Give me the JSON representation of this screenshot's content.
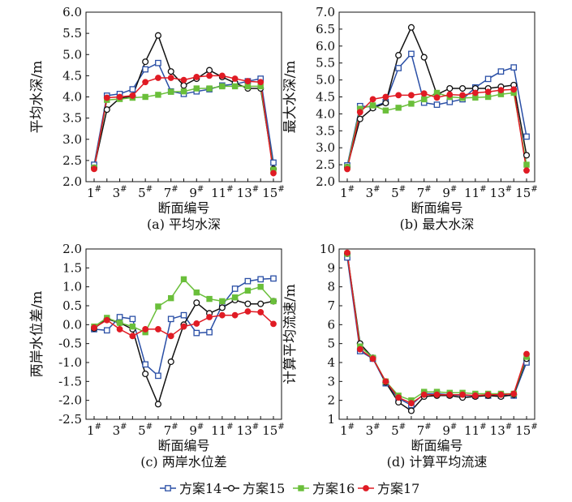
{
  "legend": [
    {
      "name": "方案14",
      "color": "#2a4fa6",
      "marker": "square-open"
    },
    {
      "name": "方案15",
      "color": "#111111",
      "marker": "circle-open"
    },
    {
      "name": "方案16",
      "color": "#6abf3a",
      "marker": "square-filled"
    },
    {
      "name": "方案17",
      "color": "#e01b24",
      "marker": "circle-filled"
    }
  ],
  "chart_data": [
    {
      "type": "line",
      "caption": "(a) 平均水深",
      "ylabel": "平均水深/m",
      "xlabel": "断面编号",
      "x": [
        1,
        2,
        3,
        4,
        5,
        6,
        7,
        8,
        9,
        10,
        11,
        12,
        13,
        14,
        15
      ],
      "xticks": [
        "1#",
        "3#",
        "5#",
        "7#",
        "9#",
        "11#",
        "13#",
        "15#"
      ],
      "ylim": [
        2.0,
        6.0
      ],
      "yticks": [
        "6.0",
        "5.5",
        "5.0",
        "4.5",
        "4.0",
        "3.5",
        "3.0",
        "2.5",
        "2.0"
      ],
      "series": [
        {
          "name": "方案14",
          "values": [
            2.4,
            4.03,
            4.07,
            4.18,
            4.65,
            4.8,
            4.13,
            4.07,
            4.13,
            4.18,
            4.27,
            4.3,
            4.37,
            4.43,
            2.45
          ]
        },
        {
          "name": "方案15",
          "values": [
            2.33,
            3.7,
            3.97,
            4.02,
            4.83,
            5.45,
            4.6,
            4.27,
            4.43,
            4.63,
            4.47,
            4.33,
            4.2,
            4.2,
            2.3
          ]
        },
        {
          "name": "方案16",
          "values": [
            2.33,
            3.93,
            3.95,
            3.98,
            4.0,
            4.05,
            4.12,
            4.13,
            4.2,
            4.2,
            4.25,
            4.25,
            4.25,
            4.25,
            2.28
          ]
        },
        {
          "name": "方案17",
          "values": [
            2.3,
            3.98,
            4.0,
            4.03,
            4.35,
            4.45,
            4.45,
            4.4,
            4.47,
            4.5,
            4.5,
            4.43,
            4.37,
            4.35,
            2.2
          ]
        }
      ]
    },
    {
      "type": "line",
      "caption": "(b) 最大水深",
      "ylabel": "最大水深/m",
      "xlabel": "断面编号",
      "x": [
        1,
        2,
        3,
        4,
        5,
        6,
        7,
        8,
        9,
        10,
        11,
        12,
        13,
        14,
        15
      ],
      "xticks": [
        "1#",
        "3#",
        "5#",
        "7#",
        "9#",
        "11#",
        "13#",
        "15#"
      ],
      "ylim": [
        2.0,
        7.0
      ],
      "yticks": [
        "7.0",
        "6.5",
        "6.0",
        "5.5",
        "5.0",
        "4.5",
        "4.0",
        "3.5",
        "3.0",
        "2.5",
        "2.0"
      ],
      "series": [
        {
          "name": "方案14",
          "values": [
            2.48,
            4.23,
            4.2,
            4.35,
            5.35,
            5.77,
            4.33,
            4.27,
            4.35,
            4.43,
            4.78,
            5.03,
            5.25,
            5.37,
            3.33
          ]
        },
        {
          "name": "方案15",
          "values": [
            2.43,
            3.85,
            4.17,
            4.32,
            5.73,
            6.55,
            5.67,
            4.57,
            4.75,
            4.75,
            4.75,
            4.75,
            4.8,
            4.85,
            2.78
          ]
        },
        {
          "name": "方案16",
          "values": [
            2.43,
            4.15,
            4.25,
            4.1,
            4.18,
            4.3,
            4.43,
            4.62,
            4.5,
            4.47,
            4.48,
            4.5,
            4.58,
            4.62,
            2.5
          ]
        },
        {
          "name": "方案17",
          "values": [
            2.37,
            4.05,
            4.43,
            4.5,
            4.55,
            4.55,
            4.6,
            4.48,
            4.57,
            4.55,
            4.62,
            4.65,
            4.7,
            4.72,
            2.33
          ]
        }
      ]
    },
    {
      "type": "line",
      "caption": "(c) 两岸水位差",
      "ylabel": "两岸水位差/m",
      "xlabel": "断面编号",
      "x": [
        1,
        2,
        3,
        4,
        5,
        6,
        7,
        8,
        9,
        10,
        11,
        12,
        13,
        14,
        15
      ],
      "xticks": [
        "1#",
        "3#",
        "5#",
        "7#",
        "9#",
        "11#",
        "13#",
        "15#"
      ],
      "ylim": [
        -2.5,
        2.0
      ],
      "yticks": [
        "2.0",
        "1.5",
        "1.0",
        "0.5",
        "0.0",
        "-0.5",
        "-1.0",
        "-1.5",
        "-2.0",
        "-2.5"
      ],
      "series": [
        {
          "name": "方案14",
          "values": [
            -0.12,
            -0.15,
            0.2,
            0.15,
            -1.05,
            -1.35,
            0.15,
            0.25,
            -0.22,
            -0.2,
            0.52,
            0.95,
            1.15,
            1.2,
            1.22
          ]
        },
        {
          "name": "方案15",
          "values": [
            -0.1,
            0.15,
            0.05,
            -0.12,
            -1.3,
            -2.1,
            -0.98,
            0.0,
            0.58,
            0.3,
            0.45,
            0.65,
            0.55,
            0.55,
            0.62
          ]
        },
        {
          "name": "方案16",
          "values": [
            -0.05,
            0.18,
            0.05,
            -0.05,
            -0.2,
            0.48,
            0.7,
            1.2,
            0.85,
            0.68,
            0.62,
            0.72,
            0.9,
            1.0,
            0.62
          ]
        },
        {
          "name": "方案17",
          "values": [
            -0.08,
            0.12,
            -0.12,
            -0.3,
            -0.12,
            -0.12,
            -0.3,
            -0.05,
            0.03,
            0.2,
            0.25,
            0.25,
            0.35,
            0.33,
            0.02
          ]
        }
      ]
    },
    {
      "type": "line",
      "caption": "(d) 计算平均流速",
      "ylabel": "计算平均流速/m",
      "xlabel": "断面编号",
      "x": [
        1,
        2,
        3,
        4,
        5,
        6,
        7,
        8,
        9,
        10,
        11,
        12,
        13,
        14,
        15
      ],
      "xticks": [
        "1#",
        "3#",
        "5#",
        "7#",
        "9#",
        "11#",
        "13#",
        "15#"
      ],
      "ylim": [
        1,
        10
      ],
      "yticks": [
        "10",
        "9",
        "8",
        "7",
        "6",
        "5",
        "4",
        "3",
        "2",
        "1"
      ],
      "series": [
        {
          "name": "方案14",
          "values": [
            9.55,
            4.6,
            4.2,
            2.9,
            2.1,
            1.75,
            2.35,
            2.35,
            2.3,
            2.25,
            2.25,
            2.25,
            2.25,
            2.25,
            4.0
          ]
        },
        {
          "name": "方案15",
          "values": [
            9.75,
            5.0,
            4.25,
            2.95,
            1.9,
            1.45,
            2.2,
            2.25,
            2.25,
            2.15,
            2.2,
            2.25,
            2.2,
            2.3,
            4.2
          ]
        },
        {
          "name": "方案16",
          "values": [
            9.75,
            4.85,
            4.25,
            3.0,
            2.25,
            2.0,
            2.45,
            2.45,
            2.4,
            2.4,
            2.35,
            2.35,
            2.35,
            2.35,
            4.3
          ]
        },
        {
          "name": "方案17",
          "values": [
            9.8,
            4.7,
            4.2,
            3.0,
            2.15,
            1.85,
            2.3,
            2.3,
            2.3,
            2.3,
            2.25,
            2.3,
            2.3,
            2.35,
            4.45
          ]
        }
      ]
    }
  ]
}
